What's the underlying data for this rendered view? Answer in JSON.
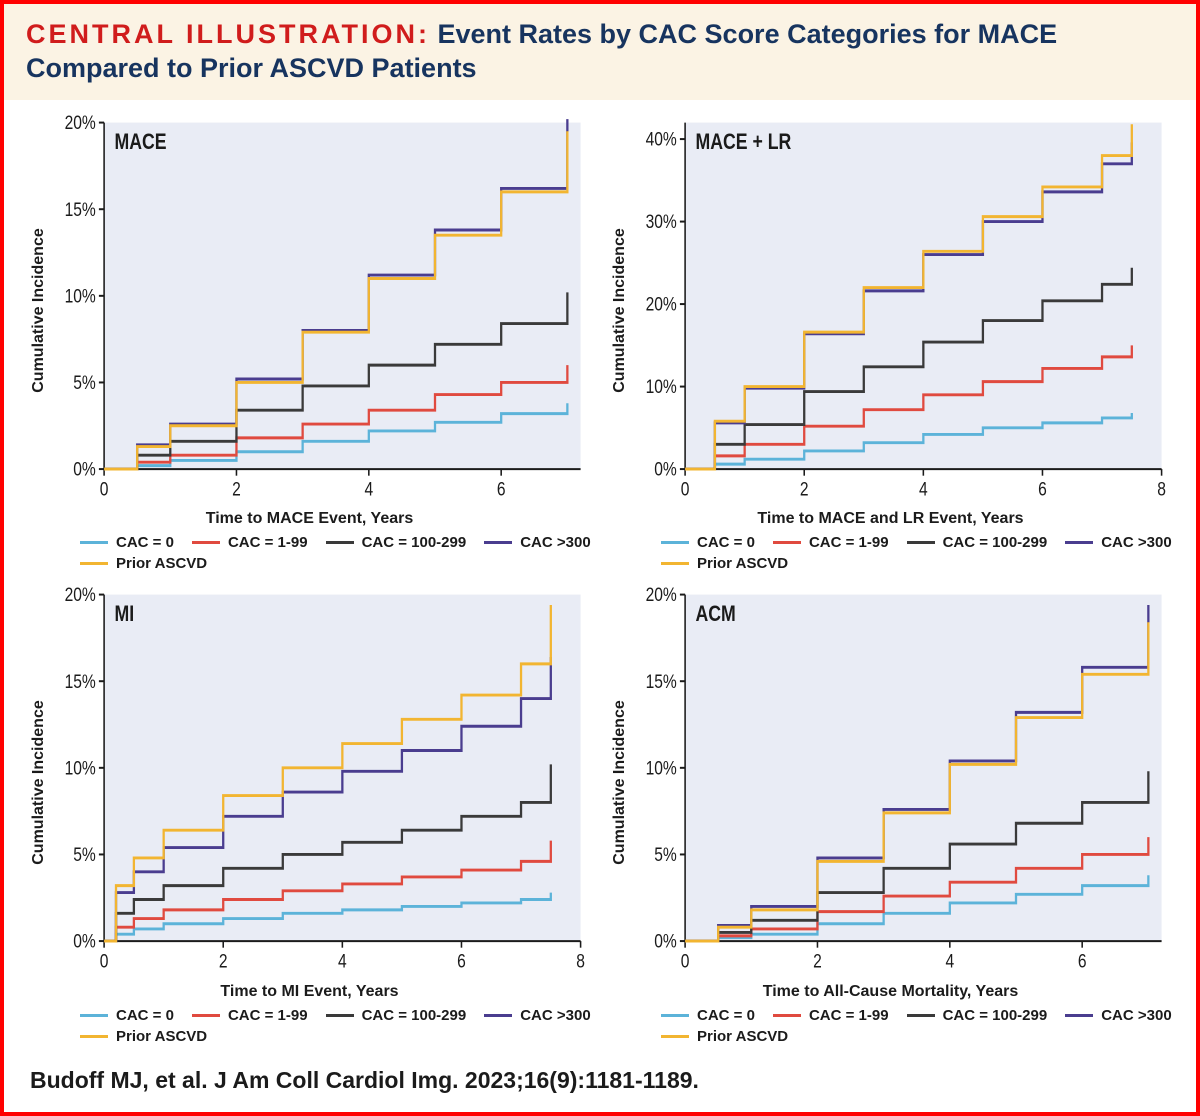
{
  "header": {
    "prefix": "CENTRAL ILLUSTRATION:",
    "rest": " Event Rates by CAC Score Categories for MACE Compared to Prior ASCVD Patients"
  },
  "citation": "Budoff MJ, et al. J Am Coll Cardiol Img. 2023;16(9):1181-1189.",
  "colors": {
    "plot_bg": "#e9ecf5",
    "axis": "#1b1b1b",
    "tick_text": "#1b1b1b",
    "series": {
      "cac0": "#5cb3d9",
      "cac1_99": "#e04a3f",
      "cac100_299": "#3a3a3a",
      "cac300": "#4a3d8f",
      "ascvd": "#f2b531"
    }
  },
  "legend_labels": {
    "cac0": "CAC = 0",
    "cac1_99": "CAC = 1-99",
    "cac100_299": "CAC = 100-299",
    "cac300": "CAC >300",
    "ascvd": "Prior ASCVD"
  },
  "typography": {
    "axis_label_fontsize": 16,
    "tick_fontsize": 15,
    "panel_title_fontsize": 17,
    "legend_fontsize": 15,
    "line_width": 2.2
  },
  "panels": [
    {
      "id": "mace",
      "title": "MACE",
      "xlabel": "Time to MACE Event, Years",
      "ylabel": "Cumulative Incidence",
      "xlim": [
        0,
        7.2
      ],
      "xtick_step": 2,
      "xticks": [
        0,
        2,
        4,
        6
      ],
      "ylim": [
        0,
        20
      ],
      "ytick_step": 5,
      "yticks": [
        0,
        5,
        10,
        15,
        20
      ],
      "ytick_suffix": "%",
      "series": {
        "cac0": [
          [
            0,
            0
          ],
          [
            0.5,
            0.2
          ],
          [
            1,
            0.5
          ],
          [
            2,
            1.0
          ],
          [
            3,
            1.6
          ],
          [
            4,
            2.2
          ],
          [
            5,
            2.7
          ],
          [
            6,
            3.2
          ],
          [
            7,
            3.8
          ]
        ],
        "cac1_99": [
          [
            0,
            0
          ],
          [
            0.5,
            0.4
          ],
          [
            1,
            0.8
          ],
          [
            2,
            1.8
          ],
          [
            3,
            2.6
          ],
          [
            4,
            3.4
          ],
          [
            5,
            4.3
          ],
          [
            6,
            5.0
          ],
          [
            7,
            6.0
          ]
        ],
        "cac100_299": [
          [
            0,
            0
          ],
          [
            0.5,
            0.8
          ],
          [
            1,
            1.6
          ],
          [
            2,
            3.4
          ],
          [
            3,
            4.8
          ],
          [
            4,
            6.0
          ],
          [
            5,
            7.2
          ],
          [
            6,
            8.4
          ],
          [
            7,
            10.2
          ]
        ],
        "cac300": [
          [
            0,
            0
          ],
          [
            0.5,
            1.4
          ],
          [
            1,
            2.6
          ],
          [
            2,
            5.2
          ],
          [
            3,
            8.0
          ],
          [
            4,
            11.2
          ],
          [
            5,
            13.8
          ],
          [
            6,
            16.2
          ],
          [
            7,
            20.2
          ]
        ],
        "ascvd": [
          [
            0,
            0
          ],
          [
            0.5,
            1.3
          ],
          [
            1,
            2.5
          ],
          [
            2,
            5.0
          ],
          [
            3,
            7.9
          ],
          [
            4,
            11.0
          ],
          [
            5,
            13.5
          ],
          [
            6,
            16.0
          ],
          [
            7,
            19.5
          ]
        ]
      }
    },
    {
      "id": "mace_lr",
      "title": "MACE + LR",
      "xlabel": "Time to MACE and LR Event, Years",
      "ylabel": "Cumulative Incidence",
      "xlim": [
        0,
        8
      ],
      "xtick_step": 2,
      "xticks": [
        0,
        2,
        4,
        6,
        8
      ],
      "ylim": [
        0,
        42
      ],
      "ytick_step": 10,
      "yticks": [
        0,
        10,
        20,
        30,
        40
      ],
      "ytick_suffix": "%",
      "series": {
        "cac0": [
          [
            0,
            0
          ],
          [
            0.5,
            0.6
          ],
          [
            1,
            1.2
          ],
          [
            2,
            2.2
          ],
          [
            3,
            3.2
          ],
          [
            4,
            4.2
          ],
          [
            5,
            5.0
          ],
          [
            6,
            5.6
          ],
          [
            7,
            6.2
          ],
          [
            7.5,
            6.8
          ]
        ],
        "cac1_99": [
          [
            0,
            0
          ],
          [
            0.5,
            1.6
          ],
          [
            1,
            3.0
          ],
          [
            2,
            5.2
          ],
          [
            3,
            7.2
          ],
          [
            4,
            9.0
          ],
          [
            5,
            10.6
          ],
          [
            6,
            12.2
          ],
          [
            7,
            13.6
          ],
          [
            7.5,
            15.0
          ]
        ],
        "cac100_299": [
          [
            0,
            0
          ],
          [
            0.5,
            3.0
          ],
          [
            1,
            5.4
          ],
          [
            2,
            9.4
          ],
          [
            3,
            12.4
          ],
          [
            4,
            15.4
          ],
          [
            5,
            18.0
          ],
          [
            6,
            20.4
          ],
          [
            7,
            22.4
          ],
          [
            7.5,
            24.4
          ]
        ],
        "cac300": [
          [
            0,
            0
          ],
          [
            0.5,
            5.6
          ],
          [
            1,
            9.8
          ],
          [
            2,
            16.4
          ],
          [
            3,
            21.6
          ],
          [
            4,
            26.0
          ],
          [
            5,
            30.0
          ],
          [
            6,
            33.6
          ],
          [
            7,
            37.0
          ],
          [
            7.5,
            39.6
          ]
        ],
        "ascvd": [
          [
            0,
            0
          ],
          [
            0.5,
            5.8
          ],
          [
            1,
            10.0
          ],
          [
            2,
            16.6
          ],
          [
            3,
            22.0
          ],
          [
            4,
            26.4
          ],
          [
            5,
            30.6
          ],
          [
            6,
            34.2
          ],
          [
            7,
            38.0
          ],
          [
            7.5,
            41.8
          ]
        ]
      }
    },
    {
      "id": "mi",
      "title": "MI",
      "xlabel": "Time to MI Event, Years",
      "ylabel": "Cumulative Incidence",
      "xlim": [
        0,
        8
      ],
      "xtick_step": 2,
      "xticks": [
        0,
        2,
        4,
        6,
        8
      ],
      "ylim": [
        0,
        20
      ],
      "ytick_step": 5,
      "yticks": [
        0,
        5,
        10,
        15,
        20
      ],
      "ytick_suffix": "%",
      "series": {
        "cac0": [
          [
            0,
            0
          ],
          [
            0.2,
            0.4
          ],
          [
            0.5,
            0.7
          ],
          [
            1,
            1.0
          ],
          [
            2,
            1.3
          ],
          [
            3,
            1.6
          ],
          [
            4,
            1.8
          ],
          [
            5,
            2.0
          ],
          [
            6,
            2.2
          ],
          [
            7,
            2.4
          ],
          [
            7.5,
            2.8
          ]
        ],
        "cac1_99": [
          [
            0,
            0
          ],
          [
            0.2,
            0.8
          ],
          [
            0.5,
            1.3
          ],
          [
            1,
            1.8
          ],
          [
            2,
            2.4
          ],
          [
            3,
            2.9
          ],
          [
            4,
            3.3
          ],
          [
            5,
            3.7
          ],
          [
            6,
            4.1
          ],
          [
            7,
            4.6
          ],
          [
            7.5,
            5.8
          ]
        ],
        "cac100_299": [
          [
            0,
            0
          ],
          [
            0.2,
            1.6
          ],
          [
            0.5,
            2.4
          ],
          [
            1,
            3.2
          ],
          [
            2,
            4.2
          ],
          [
            3,
            5.0
          ],
          [
            4,
            5.7
          ],
          [
            5,
            6.4
          ],
          [
            6,
            7.2
          ],
          [
            7,
            8.0
          ],
          [
            7.5,
            10.2
          ]
        ],
        "cac300": [
          [
            0,
            0
          ],
          [
            0.2,
            2.8
          ],
          [
            0.5,
            4.0
          ],
          [
            1,
            5.4
          ],
          [
            2,
            7.2
          ],
          [
            3,
            8.6
          ],
          [
            4,
            9.8
          ],
          [
            5,
            11.0
          ],
          [
            6,
            12.4
          ],
          [
            7,
            14.0
          ],
          [
            7.5,
            16.4
          ]
        ],
        "ascvd": [
          [
            0,
            0
          ],
          [
            0.2,
            3.2
          ],
          [
            0.5,
            4.8
          ],
          [
            1,
            6.4
          ],
          [
            2,
            8.4
          ],
          [
            3,
            10.0
          ],
          [
            4,
            11.4
          ],
          [
            5,
            12.8
          ],
          [
            6,
            14.2
          ],
          [
            7,
            16.0
          ],
          [
            7.5,
            19.4
          ]
        ]
      }
    },
    {
      "id": "acm",
      "title": "ACM",
      "xlabel": "Time to All-Cause Mortality, Years",
      "ylabel": "Cumulative Incidence",
      "xlim": [
        0,
        7.2
      ],
      "xtick_step": 2,
      "xticks": [
        0,
        2,
        4,
        6
      ],
      "ylim": [
        0,
        20
      ],
      "ytick_step": 5,
      "yticks": [
        0,
        5,
        10,
        15,
        20
      ],
      "ytick_suffix": "%",
      "series": {
        "cac0": [
          [
            0,
            0
          ],
          [
            0.5,
            0.2
          ],
          [
            1,
            0.4
          ],
          [
            2,
            1.0
          ],
          [
            3,
            1.6
          ],
          [
            4,
            2.2
          ],
          [
            5,
            2.7
          ],
          [
            6,
            3.2
          ],
          [
            7,
            3.8
          ]
        ],
        "cac1_99": [
          [
            0,
            0
          ],
          [
            0.5,
            0.3
          ],
          [
            1,
            0.7
          ],
          [
            2,
            1.7
          ],
          [
            3,
            2.6
          ],
          [
            4,
            3.4
          ],
          [
            5,
            4.2
          ],
          [
            6,
            5.0
          ],
          [
            7,
            6.0
          ]
        ],
        "cac100_299": [
          [
            0,
            0
          ],
          [
            0.5,
            0.5
          ],
          [
            1,
            1.2
          ],
          [
            2,
            2.8
          ],
          [
            3,
            4.2
          ],
          [
            4,
            5.6
          ],
          [
            5,
            6.8
          ],
          [
            6,
            8.0
          ],
          [
            7,
            9.8
          ]
        ],
        "cac300": [
          [
            0,
            0
          ],
          [
            0.5,
            0.9
          ],
          [
            1,
            2.0
          ],
          [
            2,
            4.8
          ],
          [
            3,
            7.6
          ],
          [
            4,
            10.4
          ],
          [
            5,
            13.2
          ],
          [
            6,
            15.8
          ],
          [
            7,
            19.4
          ]
        ],
        "ascvd": [
          [
            0,
            0
          ],
          [
            0.5,
            0.8
          ],
          [
            1,
            1.8
          ],
          [
            2,
            4.6
          ],
          [
            3,
            7.4
          ],
          [
            4,
            10.2
          ],
          [
            5,
            12.9
          ],
          [
            6,
            15.4
          ],
          [
            7,
            18.4
          ]
        ]
      }
    }
  ]
}
